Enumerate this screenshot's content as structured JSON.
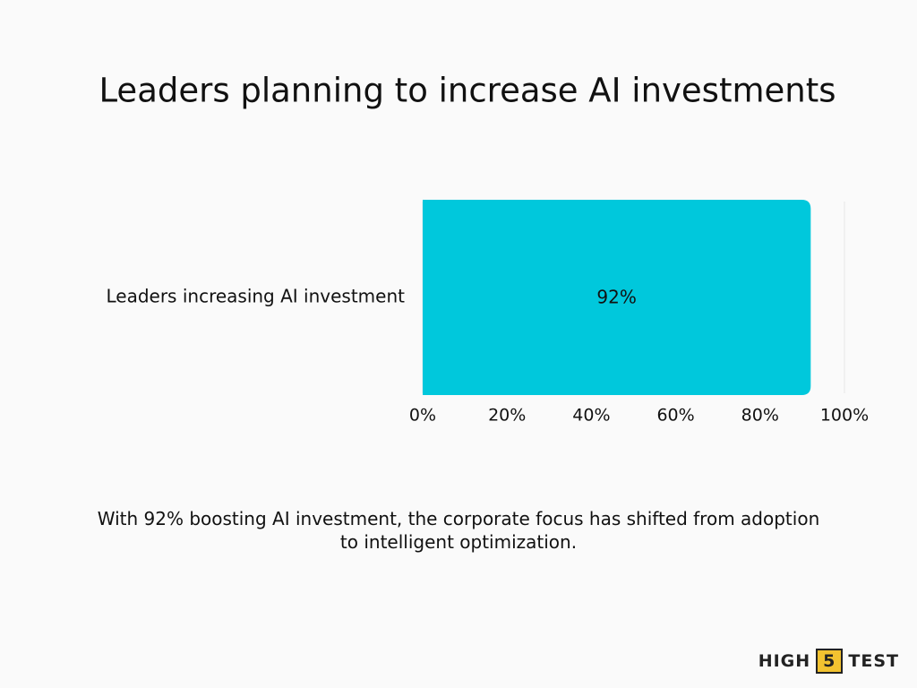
{
  "chart_data": {
    "type": "bar",
    "orientation": "horizontal",
    "title": "Leaders planning to increase AI investments",
    "categories": [
      "Leaders increasing AI investment"
    ],
    "values": [
      92
    ],
    "value_labels": [
      "92%"
    ],
    "color": "#00c8dc",
    "xlim": [
      0,
      100
    ],
    "xticks": [
      {
        "value": 0,
        "label": "0%"
      },
      {
        "value": 20,
        "label": "20%"
      },
      {
        "value": 40,
        "label": "40%"
      },
      {
        "value": 60,
        "label": "60%"
      },
      {
        "value": 80,
        "label": "80%"
      },
      {
        "value": 100,
        "label": "100%"
      }
    ],
    "grid": true,
    "annotation": "With 92% boosting AI investment, the corporate focus has shifted from adoption to intelligent optimization."
  },
  "logo": [
    "HIGH",
    "5",
    "TEST"
  ]
}
